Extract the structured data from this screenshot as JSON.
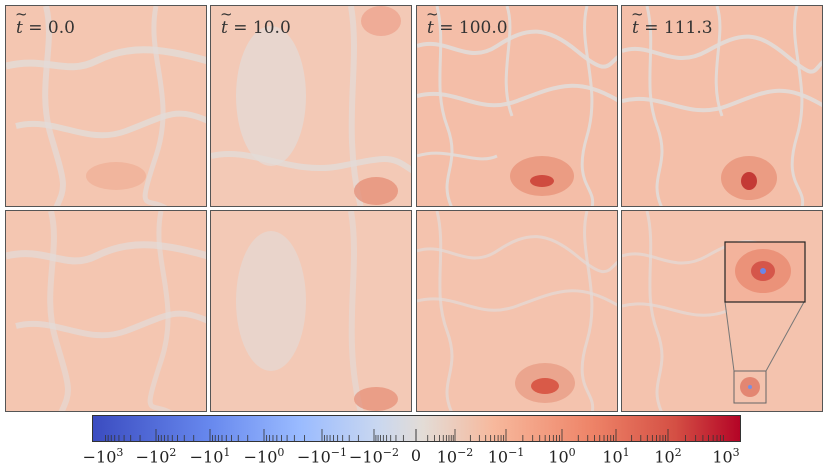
{
  "panels": {
    "top_labels": [
      "0.0",
      "10.0",
      "100.0",
      "111.3"
    ]
  },
  "colorbar": {
    "tick_labels": [
      {
        "mant": "−10",
        "exp": "3"
      },
      {
        "mant": "−10",
        "exp": "2"
      },
      {
        "mant": "−10",
        "exp": "1"
      },
      {
        "mant": "−10",
        "exp": "0"
      },
      {
        "mant": "−10",
        "exp": "−1"
      },
      {
        "mant": "−10",
        "exp": "−2"
      },
      {
        "mant": "0",
        "exp": ""
      },
      {
        "mant": "10",
        "exp": "−2"
      },
      {
        "mant": "10",
        "exp": "−1"
      },
      {
        "mant": "10",
        "exp": "0"
      },
      {
        "mant": "10",
        "exp": "1"
      },
      {
        "mant": "10",
        "exp": "2"
      },
      {
        "mant": "10",
        "exp": "3"
      }
    ],
    "colormap": [
      "#3b4cc0",
      "#dddcdc",
      "#b40426"
    ]
  }
}
